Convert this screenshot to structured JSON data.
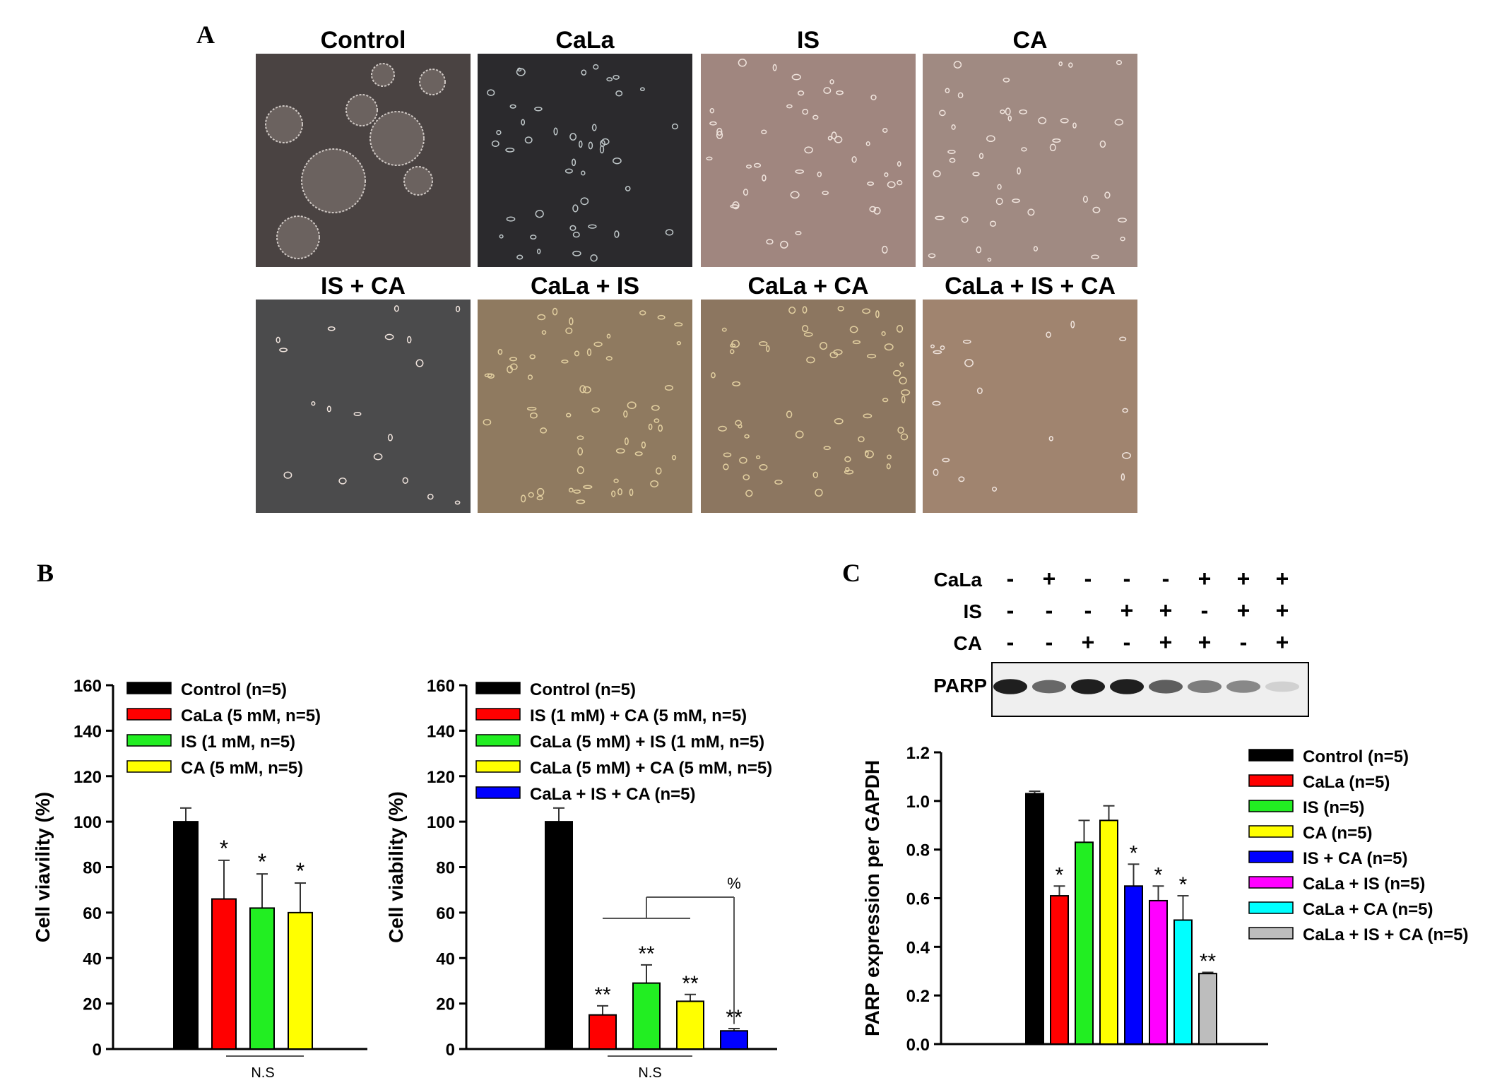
{
  "panels": {
    "a": {
      "letter": "A",
      "images": [
        {
          "title": "Control",
          "tone": "#4a4342",
          "cells": "colonies"
        },
        {
          "title": "CaLa",
          "tone": "#2b2a2d",
          "cells": "sparse-bright"
        },
        {
          "title": "IS",
          "tone": "#a0867f",
          "cells": "scattered"
        },
        {
          "title": "CA",
          "tone": "#a08a82",
          "cells": "scattered"
        },
        {
          "title": "IS + CA",
          "tone": "#4b4b4c",
          "cells": "few"
        },
        {
          "title": "CaLa + IS",
          "tone": "#8f7a60",
          "cells": "debris"
        },
        {
          "title": "CaLa + CA",
          "tone": "#8c7660",
          "cells": "debris"
        },
        {
          "title": "CaLa + IS + CA",
          "tone": "#a0846f",
          "cells": "few"
        }
      ]
    },
    "b": {
      "letter": "B"
    },
    "c": {
      "letter": "C"
    }
  },
  "colors": {
    "black": "#000000",
    "red": "#ff0000",
    "green": "#22ee22",
    "yellow": "#ffff00",
    "blue": "#0000ff",
    "magenta": "#ff00ff",
    "cyan": "#00ffff",
    "gray": "#bdbdbd"
  },
  "western_blot": {
    "row_labels": [
      "CaLa",
      "IS",
      "CA"
    ],
    "signs": [
      [
        "-",
        "+",
        "-",
        "-",
        "-",
        "+",
        "+",
        "+"
      ],
      [
        "-",
        "-",
        "-",
        "+",
        "+",
        "-",
        "+",
        "+"
      ],
      [
        "-",
        "-",
        "+",
        "-",
        "+",
        "+",
        "-",
        "+"
      ]
    ],
    "band_label": "PARP",
    "band_intensity": [
      0.95,
      0.6,
      0.95,
      0.95,
      0.65,
      0.5,
      0.45,
      0.1
    ]
  },
  "chart_data": [
    {
      "type": "bar",
      "ylabel": "Cell viavility (%)",
      "ylim": [
        0,
        160
      ],
      "yticks": [
        "0",
        "20",
        "40",
        "60",
        "80",
        "100",
        "120",
        "140",
        "160"
      ],
      "legend": [
        "Control (n=5)",
        "CaLa (5 mM, n=5)",
        "IS (1 mM, n=5)",
        "CA (5 mM, n=5)"
      ],
      "values": [
        100,
        66,
        62,
        60
      ],
      "errors": [
        6,
        17,
        15,
        13
      ],
      "colors": [
        "#000000",
        "#ff0000",
        "#22ee22",
        "#ffff00"
      ],
      "annotations": [
        "",
        "*",
        "*",
        "*"
      ],
      "bracket_label": "N.S"
    },
    {
      "type": "bar",
      "ylabel": "Cell viability (%)",
      "ylim": [
        0,
        160
      ],
      "yticks": [
        "0",
        "20",
        "40",
        "60",
        "80",
        "100",
        "120",
        "140",
        "160"
      ],
      "legend": [
        "Control (n=5)",
        "IS (1 mM) + CA (5 mM, n=5)",
        "CaLa (5 mM) + IS (1 mM, n=5)",
        "CaLa (5 mM) + CA (5 mM, n=5)",
        "CaLa + IS + CA (n=5)"
      ],
      "values": [
        100,
        15,
        29,
        21,
        8
      ],
      "errors": [
        6,
        4,
        8,
        3,
        1
      ],
      "colors": [
        "#000000",
        "#ff0000",
        "#22ee22",
        "#ffff00",
        "#0000ff"
      ],
      "annotations": [
        "",
        "**",
        "**",
        "**",
        "**"
      ],
      "bracket_label": "N.S",
      "percent_label": "%"
    },
    {
      "type": "bar",
      "ylabel": "PARP expression per GAPDH",
      "ylim": [
        0,
        1.2
      ],
      "yticks": [
        "0.0",
        "0.2",
        "0.4",
        "0.6",
        "0.8",
        "1.0",
        "1.2"
      ],
      "legend": [
        "Control (n=5)",
        "CaLa (n=5)",
        "IS (n=5)",
        "CA (n=5)",
        "IS + CA (n=5)",
        "CaLa + IS (n=5)",
        "CaLa + CA (n=5)",
        "CaLa + IS + CA (n=5)"
      ],
      "values": [
        1.03,
        0.61,
        0.83,
        0.92,
        0.65,
        0.59,
        0.51,
        0.29
      ],
      "errors": [
        0.01,
        0.04,
        0.09,
        0.06,
        0.09,
        0.06,
        0.1,
        0.005
      ],
      "colors": [
        "#000000",
        "#ff0000",
        "#22ee22",
        "#ffff00",
        "#0000ff",
        "#ff00ff",
        "#00ffff",
        "#bdbdbd"
      ],
      "annotations": [
        "",
        "*",
        "",
        "",
        "*",
        "*",
        "*",
        "**"
      ]
    }
  ]
}
